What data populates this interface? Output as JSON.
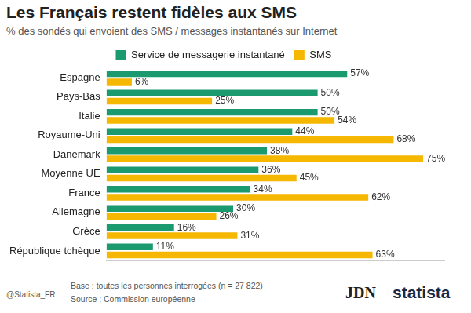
{
  "chart_data": {
    "type": "bar",
    "title": "Les Français restent fidèles aux SMS",
    "subtitle": "% des sondés qui envoient des SMS / messages instantanés sur Internet",
    "categories": [
      "Espagne",
      "Pays-Bas",
      "Italie",
      "Royaume-Uni",
      "Danemark",
      "Moyenne UE",
      "France",
      "Allemagne",
      "Grèce",
      "République tchèque"
    ],
    "series": [
      {
        "name": "Service de messagerie instantané",
        "color": "#1b9a6f",
        "values": [
          57,
          50,
          50,
          44,
          38,
          36,
          34,
          30,
          16,
          11
        ],
        "value_labels": [
          "57%",
          "50%",
          "50%",
          "44%",
          "38%",
          "36%",
          "34%",
          "30%",
          "16%",
          "11%"
        ]
      },
      {
        "name": "SMS",
        "color": "#f5b700",
        "values": [
          6,
          25,
          54,
          68,
          75,
          45,
          62,
          26,
          31,
          63
        ],
        "value_labels": [
          "6%",
          "25%",
          "54%",
          "68%",
          "75%",
          "45%",
          "62%",
          "26%",
          "31%",
          "63%"
        ]
      }
    ],
    "orientation": "horizontal",
    "xlim": [
      0,
      80
    ],
    "data_labels": true,
    "tick_labels": "y",
    "grid": false,
    "legend": "top",
    "annotations": [
      "Base : toutes les personnes interrogées (n = 27 822)",
      "Source : Commission européenne",
      "@Statista_FR",
      "JDN",
      "statista"
    ]
  }
}
